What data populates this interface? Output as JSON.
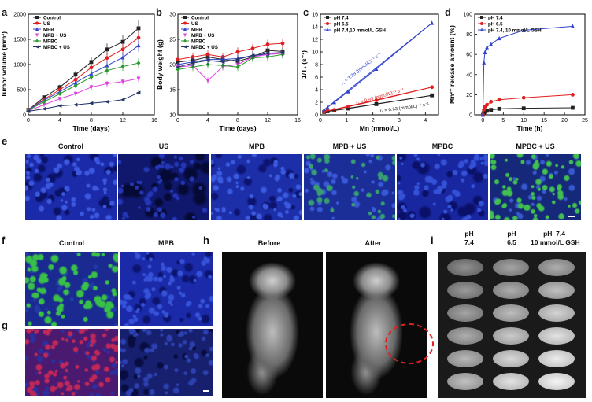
{
  "panels": {
    "a": "a",
    "b": "b",
    "c": "c",
    "d": "d",
    "e": "e",
    "f": "f",
    "g": "g",
    "h": "h",
    "i": "i"
  },
  "colors": {
    "black": "#222222",
    "red": "#e02020",
    "blue": "#3344cc",
    "magenta": "#e040e0",
    "green": "#2a9a2a",
    "navy": "#223366"
  },
  "chart_data": [
    {
      "id": "a",
      "type": "line",
      "xlabel": "Time (days)",
      "ylabel": "Tumor volume (mm³)",
      "xlim": [
        0,
        16
      ],
      "ylim": [
        0,
        2000
      ],
      "xticks": [
        0,
        4,
        8,
        12,
        16
      ],
      "yticks": [
        0,
        500,
        1000,
        1500,
        2000
      ],
      "x": [
        0,
        2,
        4,
        6,
        8,
        10,
        12,
        14
      ],
      "series": [
        {
          "name": "Control",
          "color": "#222222",
          "marker": "square",
          "values": [
            100,
            350,
            550,
            800,
            1050,
            1300,
            1450,
            1720
          ]
        },
        {
          "name": "US",
          "color": "#e02020",
          "marker": "circle",
          "values": [
            100,
            310,
            500,
            700,
            940,
            1130,
            1300,
            1530
          ]
        },
        {
          "name": "MPB",
          "color": "#3344cc",
          "marker": "triangle",
          "values": [
            100,
            290,
            460,
            640,
            820,
            980,
            1140,
            1380
          ]
        },
        {
          "name": "MPB + US",
          "color": "#e040e0",
          "marker": "triangle-down",
          "values": [
            80,
            200,
            320,
            420,
            550,
            620,
            660,
            720
          ]
        },
        {
          "name": "MPBC",
          "color": "#2a9a2a",
          "marker": "diamond",
          "values": [
            90,
            260,
            420,
            580,
            750,
            880,
            960,
            1030
          ]
        },
        {
          "name": "MPBC + US",
          "color": "#223366",
          "marker": "triangle-left",
          "values": [
            70,
            120,
            180,
            200,
            230,
            260,
            300,
            440
          ]
        }
      ]
    },
    {
      "id": "b",
      "type": "line",
      "xlabel": "Time (days)",
      "ylabel": "Body weight (g)",
      "xlim": [
        0,
        16
      ],
      "ylim": [
        10,
        30
      ],
      "xticks": [
        0,
        4,
        8,
        12,
        16
      ],
      "yticks": [
        10,
        15,
        20,
        25,
        30
      ],
      "x": [
        0,
        2,
        4,
        6,
        8,
        10,
        12,
        14
      ],
      "series": [
        {
          "name": "Control",
          "color": "#222222",
          "marker": "square",
          "values": [
            20.5,
            20.8,
            21.5,
            21.0,
            20.6,
            21.5,
            22.8,
            22.6
          ]
        },
        {
          "name": "US",
          "color": "#e02020",
          "marker": "circle",
          "values": [
            21.0,
            21.5,
            22.0,
            21.5,
            22.5,
            23.2,
            24.0,
            24.2
          ]
        },
        {
          "name": "MPB",
          "color": "#3344cc",
          "marker": "triangle",
          "values": [
            20.0,
            20.5,
            21.0,
            21.0,
            21.2,
            21.8,
            22.0,
            22.3
          ]
        },
        {
          "name": "MPB + US",
          "color": "#e040e0",
          "marker": "triangle-down",
          "values": [
            19.5,
            19.8,
            16.8,
            19.6,
            20.0,
            21.5,
            22.0,
            22.2
          ]
        },
        {
          "name": "MPBC",
          "color": "#2a9a2a",
          "marker": "diamond",
          "values": [
            19.0,
            19.5,
            20.0,
            19.8,
            19.5,
            21.3,
            21.5,
            22.0
          ]
        },
        {
          "name": "MPBC + US",
          "color": "#223366",
          "marker": "triangle-left",
          "values": [
            19.5,
            20.3,
            20.8,
            20.5,
            21.0,
            21.8,
            22.2,
            22.4
          ]
        }
      ]
    },
    {
      "id": "c",
      "type": "scatter",
      "xlabel": "Mn (mmol/L)",
      "ylabel": "1/T₁ (s⁻¹)",
      "xlim": [
        0,
        4.5
      ],
      "ylim": [
        0,
        16
      ],
      "xticks": [
        0,
        1,
        2,
        3,
        4
      ],
      "yticks": [
        0,
        2,
        4,
        6,
        8,
        10,
        12,
        14,
        16
      ],
      "series": [
        {
          "name": "pH 7.4",
          "color": "#222222",
          "marker": "square",
          "x": [
            0.14,
            0.27,
            0.53,
            1.06,
            2.13,
            4.25
          ],
          "values": [
            0.45,
            0.55,
            0.7,
            1.0,
            1.7,
            3.1
          ]
        },
        {
          "name": "pH 6.5",
          "color": "#e02020",
          "marker": "circle",
          "x": [
            0.14,
            0.27,
            0.53,
            1.06,
            2.13,
            4.25
          ],
          "values": [
            0.5,
            0.6,
            0.8,
            1.3,
            2.3,
            4.4
          ]
        },
        {
          "name": "pH 7.4,10 mmol/L GSH",
          "color": "#3344cc",
          "marker": "triangle",
          "x": [
            0.14,
            0.27,
            0.53,
            1.06,
            2.13,
            4.25
          ],
          "values": [
            0.8,
            1.2,
            2.0,
            3.7,
            7.3,
            14.6
          ]
        }
      ],
      "annotations": [
        "r₁ = 3.28 (mmol/L)⁻¹ s⁻¹",
        "r₁ = 0.93 (mmol/L)⁻¹ s⁻¹",
        "r₁ = 0.63 (mmol/L)⁻¹ s⁻¹"
      ]
    },
    {
      "id": "d",
      "type": "line",
      "xlabel": "Time (h)",
      "ylabel": "Mn²⁺ release amount (%)",
      "xlim": [
        -2,
        25
      ],
      "ylim": [
        0,
        100
      ],
      "xticks": [
        0,
        5,
        10,
        15,
        20,
        25
      ],
      "yticks": [
        0,
        20,
        40,
        60,
        80,
        100
      ],
      "series": [
        {
          "name": "pH 7.4",
          "color": "#222222",
          "marker": "square",
          "x": [
            0,
            0.25,
            0.5,
            1,
            2,
            4,
            10,
            22
          ],
          "values": [
            0,
            2,
            3,
            4,
            5,
            6,
            6.5,
            7
          ]
        },
        {
          "name": "pH 6.5",
          "color": "#e02020",
          "marker": "circle",
          "x": [
            0,
            0.25,
            0.5,
            1,
            2,
            4,
            10,
            22
          ],
          "values": [
            0,
            5,
            8,
            10,
            13,
            15,
            17,
            20
          ]
        },
        {
          "name": "pH 7.4, 10 mmol/L GSH",
          "color": "#3344cc",
          "marker": "triangle",
          "x": [
            0,
            0.25,
            0.5,
            1,
            2,
            4,
            10,
            22
          ],
          "values": [
            0,
            52,
            62,
            67,
            70,
            76,
            84,
            88
          ]
        }
      ]
    }
  ],
  "microscopy": {
    "e_labels": [
      "Control",
      "US",
      "MPB",
      "MPB + US",
      "MPBC",
      "MPBC + US"
    ],
    "f_labels": [
      "Control",
      "MPB"
    ]
  },
  "mri": {
    "h_labels": [
      "Before",
      "After"
    ],
    "i_labels": [
      "pH\n7.4",
      "pH\n6.5",
      "pH  7.4\n10 mmol/L GSH"
    ]
  }
}
